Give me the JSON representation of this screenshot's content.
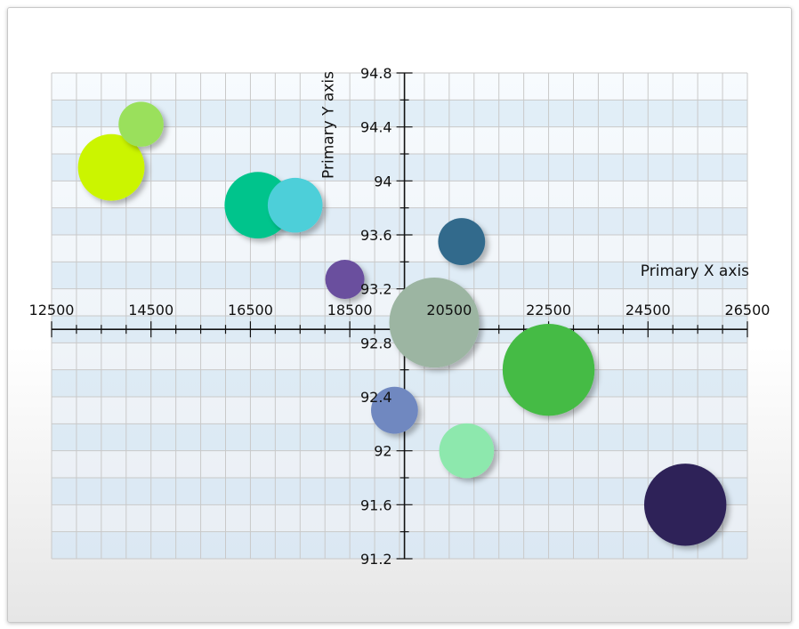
{
  "chart_data": {
    "type": "scatter",
    "subtype": "bubble",
    "xlabel": "Primary X axis",
    "ylabel": "Primary Y axis",
    "xlim": [
      12500,
      26500
    ],
    "ylim": [
      91.2,
      94.8
    ],
    "x_ticks": [
      12500,
      14500,
      16500,
      18500,
      20500,
      22500,
      24500,
      26500
    ],
    "y_ticks": [
      91.2,
      91.6,
      92,
      92.4,
      92.8,
      93.2,
      93.6,
      94,
      94.4,
      94.8
    ],
    "x_tick_labels": [
      "12500",
      "14500",
      "16500",
      "18500",
      "20500",
      "22500",
      "24500",
      "26500"
    ],
    "y_tick_labels": [
      "91.2",
      "91.6",
      "92",
      "92.4",
      "92.8",
      "93.2",
      "93.6",
      "94",
      "94.4",
      "94.8"
    ],
    "x_axis_crosses_y_at": 92.9,
    "y_axis_crosses_x_at": 19600,
    "grid": true,
    "points": [
      {
        "x": 13700,
        "y": 94.1,
        "size": 1.7,
        "color": "#cbf500"
      },
      {
        "x": 14300,
        "y": 94.42,
        "size": 1.15,
        "color": "#9ae05c"
      },
      {
        "x": 16650,
        "y": 93.82,
        "size": 1.7,
        "color": "#00c48c"
      },
      {
        "x": 17400,
        "y": 93.82,
        "size": 1.4,
        "color": "#4dcfd9"
      },
      {
        "x": 18400,
        "y": 93.27,
        "size": 1.0,
        "color": "#6a4f9e"
      },
      {
        "x": 20200,
        "y": 92.95,
        "size": 2.3,
        "color": "#9cb5a2"
      },
      {
        "x": 20750,
        "y": 93.55,
        "size": 1.2,
        "color": "#336b8c"
      },
      {
        "x": 22500,
        "y": 92.6,
        "size": 2.35,
        "color": "#44bb44"
      },
      {
        "x": 19400,
        "y": 92.3,
        "size": 1.2,
        "color": "#6f88c0"
      },
      {
        "x": 20850,
        "y": 92.0,
        "size": 1.4,
        "color": "#8de8ad"
      },
      {
        "x": 25250,
        "y": 91.6,
        "size": 2.1,
        "color": "#2e2459"
      }
    ]
  }
}
